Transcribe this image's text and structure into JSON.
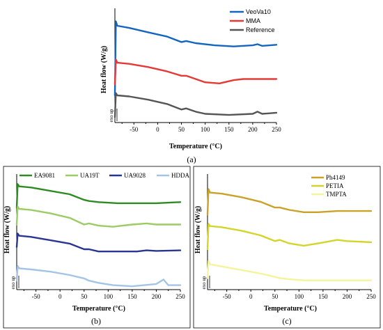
{
  "chart_data": [
    {
      "panel": "(a)",
      "type": "line",
      "xlabel": "Temperature (°C)",
      "ylabel": "Heat flow (W/g)",
      "annotation": "exo up",
      "xlim": [
        -90,
        250
      ],
      "xticks": [
        "-50",
        "0",
        "50",
        "100",
        "150",
        "200",
        "250"
      ],
      "legend_position": "top-right",
      "series": [
        {
          "name": "VeoVa10",
          "color": "#1565c0",
          "x": [
            -90,
            -88,
            -85,
            -60,
            -20,
            20,
            50,
            60,
            80,
            120,
            160,
            200,
            210,
            220,
            250
          ],
          "values": [
            0.2,
            0.88,
            0.84,
            0.82,
            0.78,
            0.74,
            0.69,
            0.7,
            0.68,
            0.66,
            0.65,
            0.66,
            0.67,
            0.655,
            0.665
          ]
        },
        {
          "name": "MMA",
          "color": "#e53935",
          "x": [
            -90,
            -88,
            -85,
            -60,
            -20,
            20,
            50,
            60,
            80,
            100,
            130,
            160,
            180,
            200,
            250
          ],
          "values": [
            0.3,
            0.53,
            0.5,
            0.49,
            0.46,
            0.42,
            0.38,
            0.38,
            0.35,
            0.32,
            0.31,
            0.34,
            0.35,
            0.35,
            0.35
          ]
        },
        {
          "name": "Reference",
          "color": "#555555",
          "x": [
            -90,
            -88,
            -85,
            -60,
            -20,
            20,
            50,
            60,
            80,
            100,
            150,
            200,
            210,
            220,
            250
          ],
          "values": [
            0.0,
            0.22,
            0.2,
            0.19,
            0.16,
            0.12,
            0.07,
            0.08,
            0.05,
            0.03,
            0.02,
            0.03,
            0.05,
            0.03,
            0.04
          ]
        }
      ]
    },
    {
      "panel": "(b)",
      "type": "line",
      "xlabel": "Temperature (°C)",
      "ylabel": "Heat flow (W/g)",
      "annotation": "exo up",
      "xlim": [
        -90,
        250
      ],
      "xticks": [
        "-50",
        "0",
        "50",
        "100",
        "150",
        "200",
        "250"
      ],
      "legend_position": "top",
      "series": [
        {
          "name": "EA9081",
          "color": "#2e8b22",
          "x": [
            -90,
            -88,
            -85,
            -60,
            -20,
            20,
            50,
            60,
            80,
            120,
            160,
            200,
            250
          ],
          "values": [
            0.65,
            0.86,
            0.84,
            0.83,
            0.8,
            0.77,
            0.72,
            0.71,
            0.7,
            0.69,
            0.69,
            0.69,
            0.7
          ]
        },
        {
          "name": "UA19T",
          "color": "#9ccc65",
          "x": [
            -90,
            -88,
            -85,
            -60,
            -20,
            20,
            50,
            60,
            80,
            110,
            150,
            180,
            200,
            250
          ],
          "values": [
            0.5,
            0.66,
            0.64,
            0.63,
            0.6,
            0.56,
            0.5,
            0.51,
            0.49,
            0.48,
            0.5,
            0.51,
            0.5,
            0.5
          ]
        },
        {
          "name": "UA9028",
          "color": "#283593",
          "x": [
            -90,
            -88,
            -85,
            -60,
            -20,
            20,
            50,
            60,
            80,
            120,
            160,
            180,
            200,
            250
          ],
          "values": [
            0.3,
            0.42,
            0.4,
            0.39,
            0.36,
            0.33,
            0.28,
            0.28,
            0.26,
            0.26,
            0.26,
            0.27,
            0.265,
            0.27
          ]
        },
        {
          "name": "HDDA",
          "color": "#a3c4e6",
          "x": [
            -90,
            -88,
            -85,
            -60,
            -20,
            20,
            50,
            60,
            80,
            110,
            150,
            200,
            215,
            225,
            250
          ],
          "values": [
            0.0,
            0.13,
            0.11,
            0.1,
            0.08,
            0.05,
            0.02,
            0.0,
            -0.02,
            -0.04,
            -0.05,
            -0.03,
            0.01,
            -0.04,
            -0.04
          ]
        }
      ]
    },
    {
      "panel": "(c)",
      "type": "line",
      "xlabel": "Temperature (°C)",
      "ylabel": "Heat flow (W/g)",
      "annotation": "exo up",
      "xlim": [
        -90,
        250
      ],
      "xticks": [
        "-50",
        "0",
        "50",
        "100",
        "150",
        "200",
        "250"
      ],
      "legend_position": "top-right",
      "series": [
        {
          "name": "Ph4149",
          "color": "#c9a227",
          "x": [
            -90,
            -88,
            -85,
            -60,
            -20,
            20,
            50,
            60,
            80,
            110,
            140,
            180,
            250
          ],
          "values": [
            0.6,
            0.82,
            0.79,
            0.78,
            0.75,
            0.71,
            0.66,
            0.66,
            0.64,
            0.62,
            0.62,
            0.63,
            0.63
          ]
        },
        {
          "name": "PETIA",
          "color": "#d4d42a",
          "x": [
            -90,
            -88,
            -85,
            -60,
            -20,
            20,
            50,
            60,
            80,
            110,
            140,
            180,
            200,
            250
          ],
          "values": [
            0.3,
            0.52,
            0.5,
            0.49,
            0.46,
            0.42,
            0.37,
            0.38,
            0.35,
            0.33,
            0.35,
            0.38,
            0.37,
            0.36
          ]
        },
        {
          "name": "TMPTA",
          "color": "#f4f49a",
          "x": [
            -90,
            -88,
            -85,
            -60,
            -20,
            20,
            50,
            60,
            80,
            110,
            150,
            200,
            250
          ],
          "values": [
            0.05,
            0.2,
            0.17,
            0.15,
            0.12,
            0.09,
            0.06,
            0.05,
            0.04,
            0.03,
            0.03,
            0.03,
            0.03
          ]
        }
      ]
    }
  ]
}
